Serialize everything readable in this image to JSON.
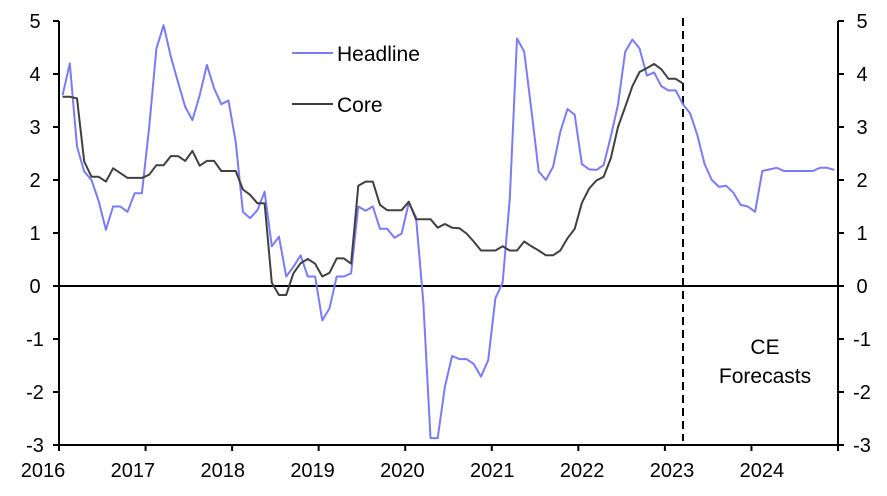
{
  "chart_data": {
    "type": "line",
    "title": "",
    "xlabel": "",
    "ylabel": "",
    "ylim": [
      -3,
      5
    ],
    "y_ticks": [
      "-3",
      "-2",
      "-1",
      "0",
      "1",
      "2",
      "3",
      "4",
      "5"
    ],
    "x_ticks": [
      "2016",
      "2017",
      "2018",
      "2019",
      "2020",
      "2021",
      "2022",
      "2023",
      "2024"
    ],
    "x_start": "2016-01",
    "frequency": "monthly",
    "legend_position": "top-center",
    "forecast_start": "2023-03",
    "annotation": [
      "CE",
      "Forecasts"
    ],
    "colors": {
      "headline": "#7b7bf5",
      "core": "#404040"
    },
    "series": [
      {
        "name": "Headline",
        "values": [
          3.6,
          4.2,
          2.63,
          2.16,
          2.0,
          1.6,
          1.06,
          1.5,
          1.5,
          1.4,
          1.75,
          1.75,
          3.0,
          4.48,
          4.92,
          4.33,
          3.85,
          3.38,
          3.13,
          3.6,
          4.17,
          3.73,
          3.43,
          3.5,
          2.72,
          1.4,
          1.28,
          1.43,
          1.78,
          0.75,
          0.93,
          0.18,
          0.36,
          0.58,
          0.18,
          0.18,
          -0.65,
          -0.42,
          0.18,
          0.18,
          0.24,
          1.5,
          1.42,
          1.5,
          1.08,
          1.08,
          0.91,
          0.99,
          1.57,
          1.3,
          -0.3,
          -2.87,
          -2.87,
          -1.9,
          -1.32,
          -1.38,
          -1.38,
          -1.47,
          -1.71,
          -1.4,
          -0.23,
          0.06,
          1.65,
          4.67,
          4.42,
          3.32,
          2.16,
          2.0,
          2.25,
          2.91,
          3.34,
          3.23,
          2.3,
          2.2,
          2.19,
          2.28,
          2.82,
          3.42,
          4.42,
          4.65,
          4.48,
          3.97,
          4.03,
          3.77,
          3.69,
          3.69,
          3.43,
          3.26,
          2.85,
          2.3,
          2.0,
          1.87,
          1.89,
          1.76,
          1.53,
          1.5,
          1.4,
          2.17,
          2.2,
          2.23,
          2.17,
          2.17,
          2.17,
          2.17,
          2.17,
          2.23,
          2.23,
          2.19
        ]
      },
      {
        "name": "Core",
        "values": [
          3.57,
          3.57,
          3.54,
          2.35,
          2.06,
          2.06,
          1.97,
          2.22,
          2.13,
          2.04,
          2.04,
          2.04,
          2.1,
          2.28,
          2.28,
          2.45,
          2.45,
          2.36,
          2.55,
          2.27,
          2.36,
          2.36,
          2.17,
          2.17,
          2.17,
          1.82,
          1.72,
          1.56,
          1.56,
          0.06,
          -0.17,
          -0.17,
          0.24,
          0.43,
          0.51,
          0.42,
          0.18,
          0.25,
          0.52,
          0.52,
          0.42,
          1.89,
          1.97,
          1.97,
          1.53,
          1.43,
          1.43,
          1.43,
          1.59,
          1.26,
          1.26,
          1.26,
          1.1,
          1.17,
          1.1,
          1.09,
          0.99,
          0.84,
          0.67,
          0.67,
          0.67,
          0.75,
          0.67,
          0.67,
          0.84,
          0.75,
          0.67,
          0.58,
          0.58,
          0.67,
          0.9,
          1.08,
          1.57,
          1.84,
          1.99,
          2.06,
          2.41,
          3.0,
          3.38,
          3.77,
          4.04,
          4.11,
          4.19,
          4.09,
          3.91,
          3.91,
          3.82
        ]
      }
    ]
  }
}
